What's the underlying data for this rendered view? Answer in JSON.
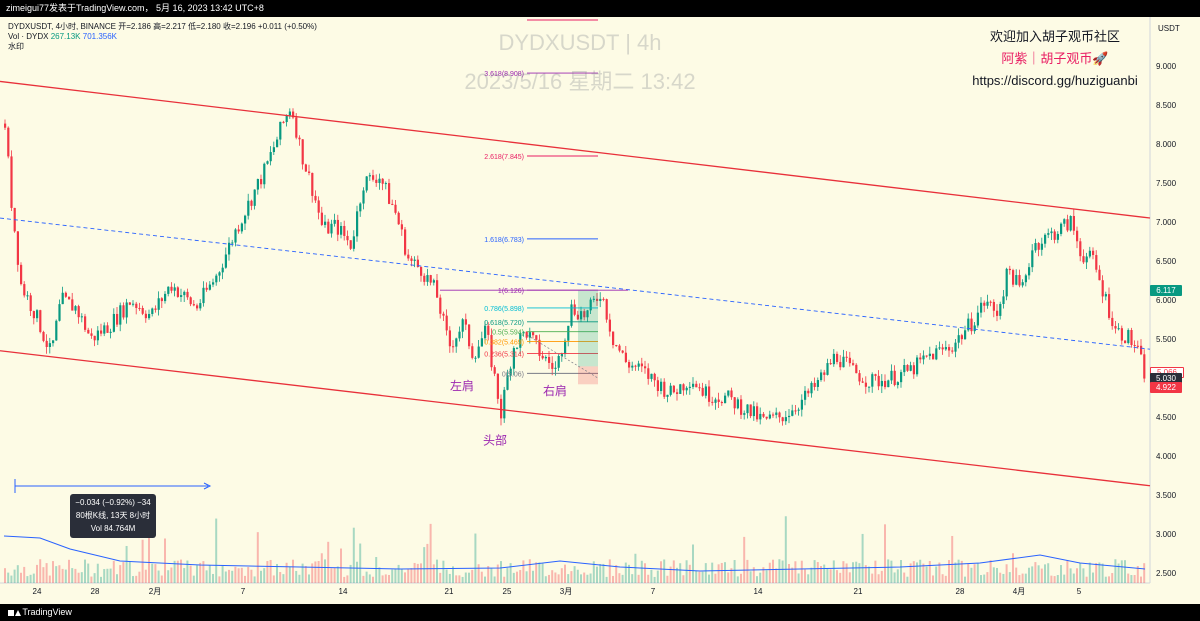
{
  "header": {
    "text": "zimeigui77发表于TradingView.com，  5月 16, 2023 13:42 UTC+8"
  },
  "footer": {
    "brand": "TradingView"
  },
  "legend": {
    "line1": "DYDXUSDT, 4小时, BINANCE  开=2.186  高=2.217  低=2.180  收=2.196  +0.011 (+0.50%)",
    "line2_label": "Vol · DYDX",
    "line2_v1": "267.13K",
    "line2_v2": "701.356K",
    "line3": "水印"
  },
  "watermark": {
    "title": "DYDXUSDT | 4h",
    "datetime": "2023/5/16 星期二 13:42"
  },
  "community": {
    "line1": "欢迎加入胡子观币社区",
    "line2": "阿紫｜胡子观币🚀",
    "line3": "https://discord.gg/huziguanbi"
  },
  "tooltip": {
    "line1": "−0.034 (−0.92%) −34",
    "line2": "80根K线, 13天 8小时",
    "line3": "Vol 84.764M"
  },
  "price_tags": [
    {
      "value": "6.117",
      "color": "#089981"
    },
    {
      "value": "5.066",
      "color": "#ffffff",
      "text_color": "#f23645"
    },
    {
      "value": "5.030",
      "color": "#2a2e39"
    },
    {
      "value": "4.922",
      "color": "#f23645"
    }
  ],
  "chart_data": {
    "type": "candlestick",
    "symbol": "DYDXUSDT",
    "exchange": "BINANCE",
    "interval": "4h",
    "y_axis_title": "USDT",
    "ylim": [
      2.4,
      9.6
    ],
    "y_ticks": [
      "9.000",
      "8.500",
      "8.000",
      "7.500",
      "7.000",
      "6.500",
      "6.000",
      "5.500",
      "5.000",
      "4.500",
      "4.000",
      "3.500",
      "3.000",
      "2.500"
    ],
    "x_ticks": [
      "24",
      "28",
      "2月",
      "7",
      "14",
      "21",
      "25",
      "3月",
      "7",
      "14",
      "21",
      "28",
      "4月",
      "5"
    ],
    "price_path": [
      [
        0,
        8.9
      ],
      [
        10,
        7.3
      ],
      [
        20,
        6.2
      ],
      [
        35,
        5.8
      ],
      [
        50,
        5.3
      ],
      [
        60,
        6.0
      ],
      [
        75,
        5.9
      ],
      [
        90,
        5.5
      ],
      [
        110,
        5.7
      ],
      [
        130,
        6.0
      ],
      [
        150,
        5.8
      ],
      [
        170,
        6.2
      ],
      [
        195,
        5.9
      ],
      [
        215,
        6.3
      ],
      [
        235,
        6.9
      ],
      [
        250,
        7.3
      ],
      [
        265,
        7.7
      ],
      [
        280,
        8.2
      ],
      [
        290,
        8.5
      ],
      [
        300,
        7.9
      ],
      [
        312,
        7.4
      ],
      [
        322,
        6.9
      ],
      [
        335,
        6.95
      ],
      [
        350,
        6.7
      ],
      [
        362,
        7.5
      ],
      [
        378,
        7.6
      ],
      [
        395,
        7.1
      ],
      [
        408,
        6.5
      ],
      [
        420,
        6.4
      ],
      [
        435,
        6.1
      ],
      [
        448,
        5.4
      ],
      [
        462,
        5.7
      ],
      [
        472,
        5.3
      ],
      [
        485,
        5.6
      ],
      [
        500,
        4.55
      ],
      [
        512,
        5.4
      ],
      [
        525,
        5.6
      ],
      [
        540,
        5.3
      ],
      [
        555,
        5.1
      ],
      [
        570,
        5.9
      ],
      [
        585,
        5.8
      ],
      [
        600,
        6.12
      ],
      [
        612,
        5.5
      ],
      [
        625,
        5.2
      ],
      [
        640,
        5.1
      ],
      [
        655,
        4.95
      ],
      [
        670,
        4.8
      ],
      [
        690,
        5.0
      ],
      [
        705,
        4.8
      ],
      [
        725,
        4.75
      ],
      [
        745,
        4.6
      ],
      [
        762,
        4.45
      ],
      [
        780,
        4.5
      ],
      [
        800,
        4.7
      ],
      [
        815,
        4.9
      ],
      [
        835,
        5.3
      ],
      [
        850,
        5.1
      ],
      [
        870,
        4.95
      ],
      [
        890,
        5.0
      ],
      [
        910,
        5.1
      ],
      [
        930,
        5.3
      ],
      [
        950,
        5.4
      ],
      [
        970,
        5.7
      ],
      [
        985,
        6.0
      ],
      [
        995,
        5.8
      ],
      [
        1008,
        6.4
      ],
      [
        1020,
        6.1
      ],
      [
        1032,
        6.7
      ],
      [
        1045,
        6.8
      ],
      [
        1058,
        6.9
      ],
      [
        1070,
        7.0
      ],
      [
        1080,
        6.6
      ],
      [
        1092,
        6.5
      ],
      [
        1105,
        6.0
      ],
      [
        1115,
        5.6
      ],
      [
        1125,
        5.55
      ],
      [
        1135,
        5.4
      ],
      [
        1145,
        5.0
      ]
    ],
    "fib_levels": [
      {
        "ratio": "3.618",
        "price": "8.908"
      },
      {
        "ratio": "2.618",
        "price": "7.845"
      },
      {
        "ratio": "1.618",
        "price": "6.783"
      },
      {
        "ratio": "1",
        "price": "6.126"
      },
      {
        "ratio": "0.786",
        "price": "5.898"
      },
      {
        "ratio": "0.618",
        "price": "5.720"
      },
      {
        "ratio": "0.5",
        "price": "5.594"
      },
      {
        "ratio": "0.382",
        "price": "5.469"
      },
      {
        "ratio": "0.236",
        "price": "5.314"
      },
      {
        "ratio": "0",
        "price": "5.06"
      }
    ],
    "annotations": [
      {
        "text": "左肩",
        "x_data": 462,
        "y_data": 4.85
      },
      {
        "text": "头部",
        "x_data": 495,
        "y_data": 4.15
      },
      {
        "text": "右肩",
        "x_data": 555,
        "y_data": 4.78
      }
    ],
    "channel": {
      "upper": [
        [
          0,
          8.8
        ],
        [
          1150,
          7.05
        ]
      ],
      "lower": [
        [
          0,
          5.35
        ],
        [
          1150,
          3.62
        ]
      ],
      "middle": [
        [
          0,
          7.05
        ],
        [
          1150,
          5.37
        ]
      ]
    },
    "colors": {
      "up": "#089981",
      "down": "#f23645",
      "channel": "#e8303a",
      "mid": "#2962ff",
      "annotation": "#9c27b0"
    }
  }
}
